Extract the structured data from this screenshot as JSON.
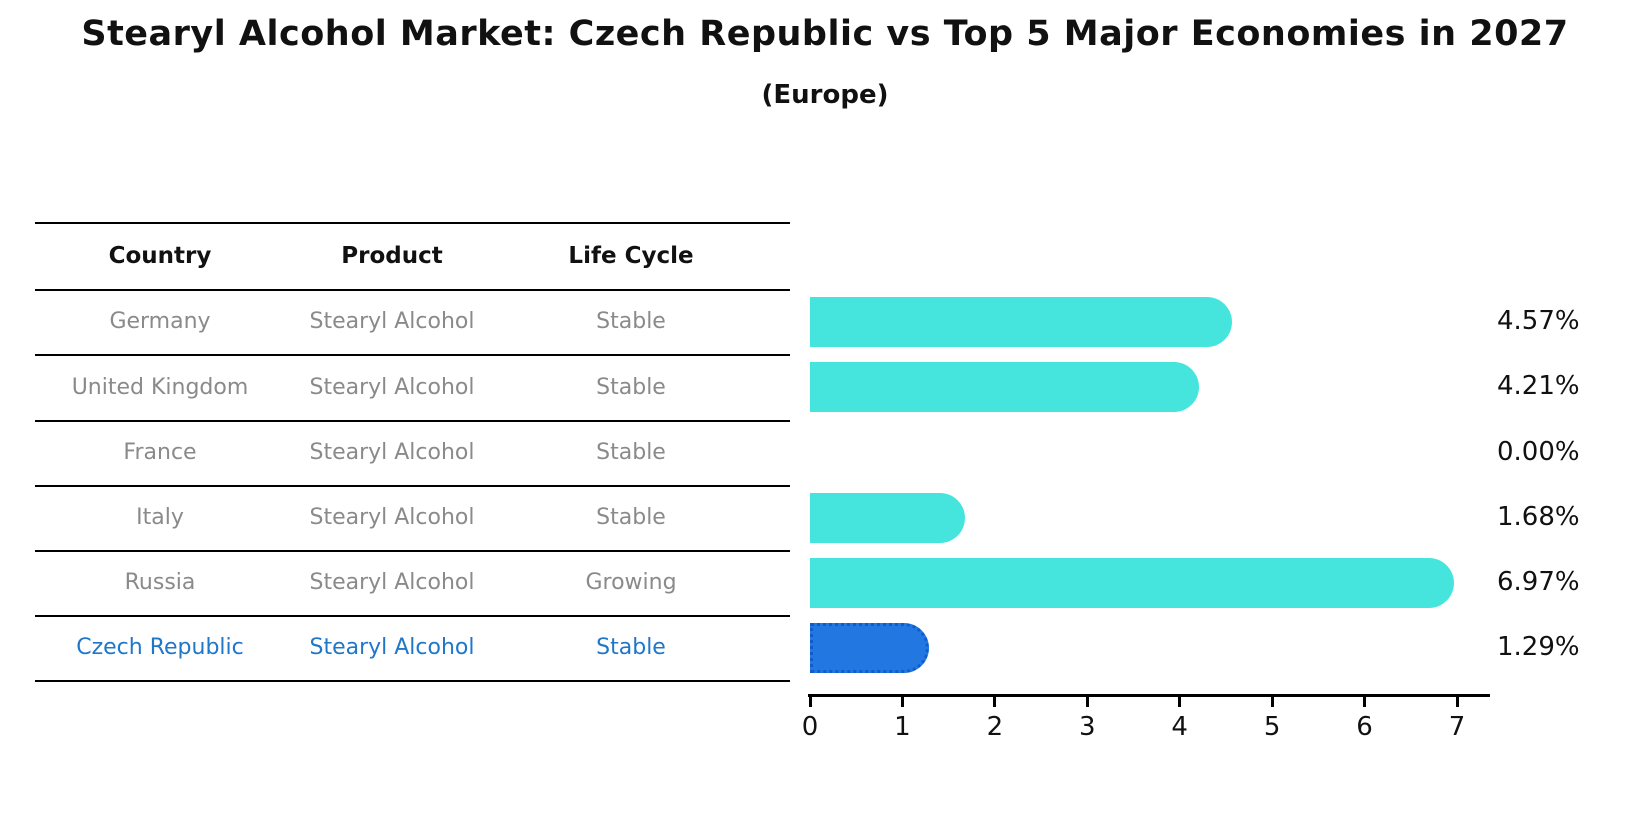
{
  "title": "Stearyl Alcohol Market: Czech Republic vs Top 5 Major Economies in 2027",
  "subtitle": "(Europe)",
  "table": {
    "headers": [
      "Country",
      "Product",
      "Life Cycle"
    ],
    "rows": [
      {
        "country": "Germany",
        "product": "Stearyl Alcohol",
        "life_cycle": "Stable",
        "highlight": false
      },
      {
        "country": "United Kingdom",
        "product": "Stearyl Alcohol",
        "life_cycle": "Stable",
        "highlight": false
      },
      {
        "country": "France",
        "product": "Stearyl Alcohol",
        "life_cycle": "Stable",
        "highlight": false
      },
      {
        "country": "Italy",
        "product": "Stearyl Alcohol",
        "life_cycle": "Stable",
        "highlight": false
      },
      {
        "country": "Russia",
        "product": "Stearyl Alcohol",
        "life_cycle": "Growing",
        "highlight": false
      },
      {
        "country": "Czech Republic",
        "product": "Stearyl Alcohol",
        "life_cycle": "Stable",
        "highlight": true
      }
    ]
  },
  "chart_data": {
    "type": "bar",
    "orientation": "horizontal",
    "title": "Stearyl Alcohol Market: Czech Republic vs Top 5 Major Economies in 2027 (Europe)",
    "categories": [
      "Germany",
      "United Kingdom",
      "France",
      "Italy",
      "Russia",
      "Czech Republic"
    ],
    "values": [
      4.57,
      4.21,
      0.0,
      1.68,
      6.97,
      1.29
    ],
    "value_labels": [
      "4.57%",
      "4.21%",
      "0.00%",
      "1.68%",
      "6.97%",
      "1.29%"
    ],
    "xlim": [
      0,
      7
    ],
    "x_ticks": [
      "0",
      "1",
      "2",
      "3",
      "4",
      "5",
      "6",
      "7"
    ],
    "grid": false,
    "legend": "none",
    "bar_color": "#45E5DE",
    "highlight_bar_color": "#2277E0",
    "highlight_border_color": "#0F5CD0",
    "highlight_text_color": "#1F77C9"
  }
}
